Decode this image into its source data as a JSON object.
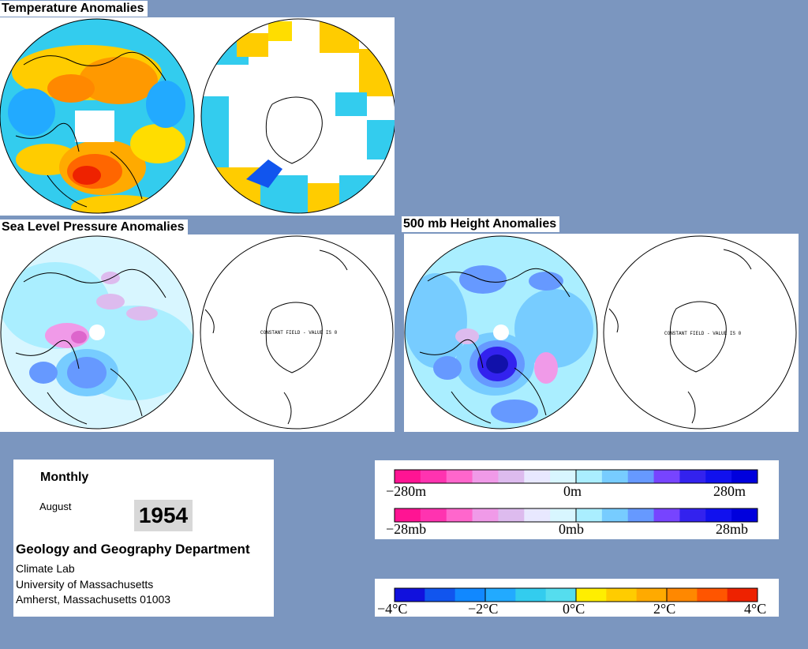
{
  "panels": {
    "temperature_title": "Temperature Anomalies",
    "slp_title": "Sea Level Pressure Anomalies",
    "height_title": "500 mb Height Anomalies",
    "constant_field_note": "CONSTANT FIELD - VALUE IS 0"
  },
  "info": {
    "period": "Monthly",
    "month": "August",
    "year": "1954",
    "department": "Geology and Geography Department",
    "lab": "Climate Lab",
    "university": "University of Massachusetts",
    "address": "Amherst, Massachusetts 01003"
  },
  "legends": {
    "height": {
      "labels": [
        "−280m",
        "0m",
        "280m"
      ]
    },
    "pressure": {
      "labels": [
        "−28mb",
        "0mb",
        "28mb"
      ]
    },
    "temperature": {
      "labels": [
        "−4°C",
        "−2°C",
        "0°C",
        "2°C",
        "4°C"
      ]
    }
  },
  "colors": {
    "background": "#7b96bf",
    "anomaly_scale": [
      "#ff1493",
      "#ff33b0",
      "#ff66cc",
      "#f09ae8",
      "#ddbbee",
      "#e8e8ff",
      "#d8f6ff",
      "#aaeeff",
      "#77ccff",
      "#6699ff",
      "#7744ff",
      "#3322ee",
      "#1111ee",
      "#0000dd"
    ],
    "temperature_scale": [
      "#1111dd",
      "#1155ee",
      "#1188ff",
      "#22aaff",
      "#33ccee",
      "#55ddee",
      "#ffee00",
      "#ffcc00",
      "#ffaa00",
      "#ff8800",
      "#ff5500",
      "#ee2200"
    ]
  }
}
